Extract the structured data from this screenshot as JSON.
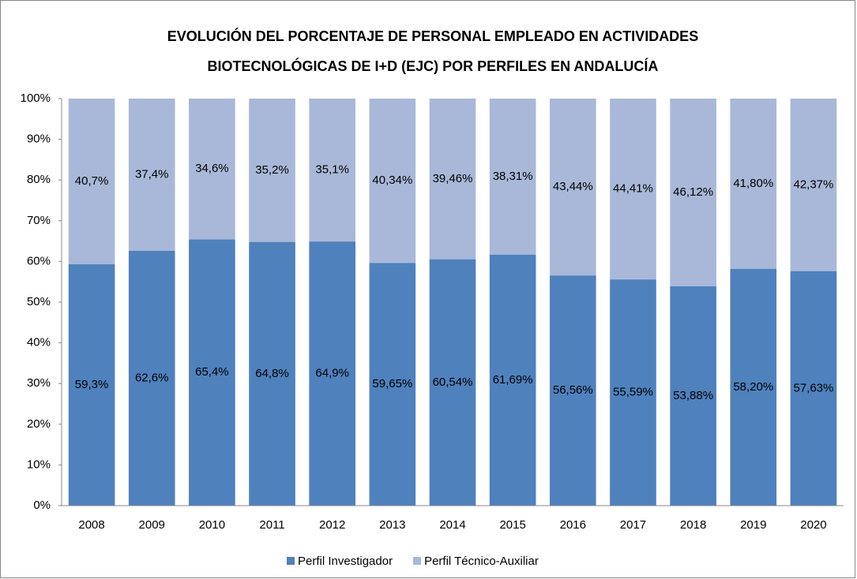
{
  "chart_data": {
    "type": "stacked_bar",
    "title": [
      "EVOLUCIÓN  DEL PORCENTAJE DE PERSONAL EMPLEADO EN  ACTIVIDADES",
      "BIOTECNOLÓGICAS DE  I+D (EJC) POR PERFILES EN ANDALUCÍA"
    ],
    "categories": [
      "2008",
      "2009",
      "2010",
      "2011",
      "2012",
      "2013",
      "2014",
      "2015",
      "2016",
      "2017",
      "2018",
      "2019",
      "2020"
    ],
    "series": [
      {
        "name": "Perfil Investigador",
        "color": "#4f81bd",
        "values": [
          59.3,
          62.6,
          65.4,
          64.8,
          64.9,
          59.65,
          60.54,
          61.69,
          56.56,
          55.59,
          53.88,
          58.2,
          57.63
        ],
        "value_labels": [
          "59,3%",
          "62,6%",
          "65,4%",
          "64,8%",
          "64,9%",
          "59,65%",
          "60,54%",
          "61,69%",
          "56,56%",
          "55,59%",
          "53,88%",
          "58,20%",
          "57,63%"
        ]
      },
      {
        "name": "Perfil Técnico-Auxiliar",
        "color": "#a9b8d8",
        "values": [
          40.7,
          37.4,
          34.6,
          35.2,
          35.1,
          40.34,
          39.46,
          38.31,
          43.44,
          44.41,
          46.12,
          41.8,
          42.37
        ],
        "value_labels": [
          "40,7%",
          "37,4%",
          "34,6%",
          "35,2%",
          "35,1%",
          "40,34%",
          "39,46%",
          "38,31%",
          "43,44%",
          "44,41%",
          "46,12%",
          "41,80%",
          "42,37%"
        ]
      }
    ],
    "ylim": [
      0,
      100
    ],
    "yticks": [
      {
        "value": 0,
        "label": "0%"
      },
      {
        "value": 10,
        "label": "10%"
      },
      {
        "value": 20,
        "label": "20%"
      },
      {
        "value": 30,
        "label": "30%"
      },
      {
        "value": 40,
        "label": "40%"
      },
      {
        "value": 50,
        "label": "50%"
      },
      {
        "value": 60,
        "label": "60%"
      },
      {
        "value": 70,
        "label": "70%"
      },
      {
        "value": 80,
        "label": "80%"
      },
      {
        "value": 90,
        "label": "90%"
      },
      {
        "value": 100,
        "label": "100%"
      }
    ],
    "grid": false,
    "legend": "bottom"
  }
}
